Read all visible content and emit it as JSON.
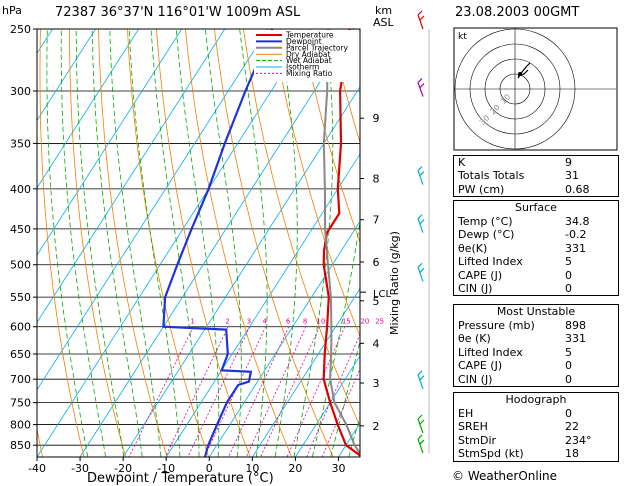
{
  "station_header": "72387  36°37'N  116°01'W  1009m  ASL",
  "date_header": "23.08.2003  00GMT",
  "footer": "© WeatherOnline",
  "hodograph": {
    "kt_label": "kt",
    "ring_labels": [
      "10",
      "20",
      "30"
    ]
  },
  "indices_top": [
    {
      "label": "K",
      "value": "9"
    },
    {
      "label": "Totals Totals",
      "value": "31"
    },
    {
      "label": "PW (cm)",
      "value": "0.68"
    }
  ],
  "surface": {
    "title": "Surface",
    "rows": [
      {
        "label": "Temp (°C)",
        "value": "34.8"
      },
      {
        "label": "Dewp (°C)",
        "value": "-0.2"
      },
      {
        "label": "θe(K)",
        "value": "331"
      },
      {
        "label": "Lifted Index",
        "value": "5"
      },
      {
        "label": "CAPE (J)",
        "value": "0"
      },
      {
        "label": "CIN (J)",
        "value": "0"
      }
    ]
  },
  "most_unstable": {
    "title": "Most Unstable",
    "rows": [
      {
        "label": "Pressure (mb)",
        "value": "898"
      },
      {
        "label": "θe (K)",
        "value": "331"
      },
      {
        "label": "Lifted Index",
        "value": "5"
      },
      {
        "label": "CAPE (J)",
        "value": "0"
      },
      {
        "label": "CIN (J)",
        "value": "0"
      }
    ]
  },
  "hodograph_table": {
    "title": "Hodograph",
    "rows": [
      {
        "label": "EH",
        "value": "0"
      },
      {
        "label": "SREH",
        "value": "22"
      },
      {
        "label": "StmDir",
        "value": "234°"
      },
      {
        "label": "StmSpd (kt)",
        "value": "18"
      }
    ]
  },
  "chart_data": {
    "type": "line",
    "title": "72387  36°37'N  116°01'W  1009m  ASL",
    "xlabel": "Dewpoint / Temperature (°C)",
    "ylabel": "hPa",
    "right_axis_label": "km\nASL",
    "mixing_axis_label": "Mixing Ratio (g/kg)",
    "xlim": [
      -40,
      35
    ],
    "pressure_range": [
      250,
      880
    ],
    "pressure_ticks": [
      250,
      300,
      350,
      400,
      450,
      500,
      550,
      600,
      650,
      700,
      750,
      800,
      850
    ],
    "temperature_ticks": [
      -40,
      -30,
      -20,
      -10,
      0,
      10,
      20,
      30
    ],
    "height_ticks": [
      {
        "label": "2",
        "p": 803
      },
      {
        "label": "3",
        "p": 708
      },
      {
        "label": "4",
        "p": 630
      },
      {
        "label": "5",
        "p": 556
      },
      {
        "label": "6",
        "p": 496
      },
      {
        "label": "7",
        "p": 438
      },
      {
        "label": "8",
        "p": 388
      },
      {
        "label": "9",
        "p": 325
      }
    ],
    "lcl": {
      "label": "LCL",
      "p": 542
    },
    "mixing_ratio_labels": [
      "1",
      "2",
      "3",
      "4",
      "6",
      "8",
      "10",
      "15",
      "20",
      "25"
    ],
    "legend": [
      "Temperature",
      "Dewpoint",
      "Parcel Trajectory",
      "Dry Adiabat",
      "Wet Adiabat",
      "Isotherm",
      "Mixing Ratio"
    ],
    "legend_colors": [
      "#dd0000",
      "#1e32dd",
      "#888888",
      "#f08000",
      "#00aa00",
      "#00b0f0",
      "#dd0099"
    ],
    "series": [
      {
        "name": "Temperature",
        "color": "#dd0000",
        "points": [
          [
            880,
            35.5
          ],
          [
            850,
            30
          ],
          [
            800,
            25
          ],
          [
            750,
            20
          ],
          [
            700,
            15
          ],
          [
            650,
            11.5
          ],
          [
            600,
            8
          ],
          [
            550,
            4
          ],
          [
            500,
            -2
          ],
          [
            480,
            -4
          ],
          [
            455,
            -6
          ],
          [
            430,
            -6
          ],
          [
            400,
            -10
          ],
          [
            350,
            -16
          ],
          [
            300,
            -24
          ],
          [
            250,
            -31
          ]
        ]
      },
      {
        "name": "Dewpoint",
        "color": "#1e32dd",
        "points": [
          [
            880,
            -1
          ],
          [
            850,
            -2
          ],
          [
            800,
            -3
          ],
          [
            750,
            -4
          ],
          [
            712,
            -4
          ],
          [
            705,
            -2
          ],
          [
            685,
            -3
          ],
          [
            682,
            -10
          ],
          [
            650,
            -11
          ],
          [
            605,
            -15
          ],
          [
            600,
            -30
          ],
          [
            550,
            -34
          ],
          [
            500,
            -36
          ],
          [
            450,
            -38
          ],
          [
            400,
            -40
          ],
          [
            350,
            -43
          ],
          [
            300,
            -46
          ],
          [
            250,
            -49
          ]
        ]
      },
      {
        "name": "Parcel Trajectory",
        "color": "#888888",
        "points": [
          [
            880,
            35.5
          ],
          [
            850,
            32
          ],
          [
            800,
            27
          ],
          [
            750,
            21
          ],
          [
            700,
            16.5
          ],
          [
            650,
            13
          ],
          [
            600,
            9
          ],
          [
            550,
            4.5
          ],
          [
            500,
            -1
          ],
          [
            450,
            -7
          ],
          [
            400,
            -13
          ],
          [
            350,
            -20
          ],
          [
            300,
            -27
          ],
          [
            250,
            -36
          ]
        ]
      }
    ],
    "wind_barbs": [
      {
        "p": 250,
        "color": "#dd0000"
      },
      {
        "p": 305,
        "color": "#aa00aa"
      },
      {
        "p": 395,
        "color": "#00b0c0"
      },
      {
        "p": 455,
        "color": "#00b0c0"
      },
      {
        "p": 525,
        "color": "#00b0c0"
      },
      {
        "p": 720,
        "color": "#00b0c0"
      },
      {
        "p": 820,
        "color": "#00aa00"
      },
      {
        "p": 870,
        "color": "#00aa00"
      }
    ]
  }
}
